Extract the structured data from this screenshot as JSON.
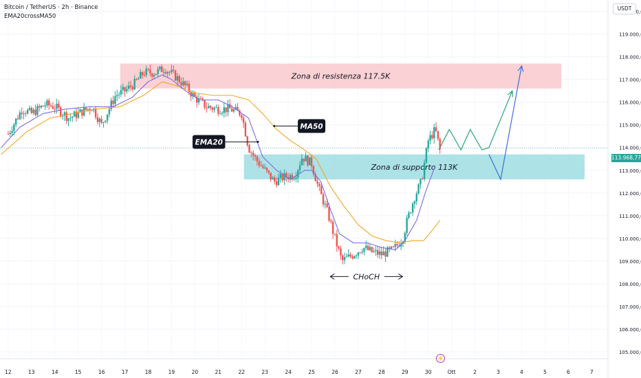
{
  "header": {
    "title": "Bitcoin / TetherUS · 2h · Binance",
    "indicator": "EMA20crossMA50"
  },
  "price_axis": {
    "currency": "USDT",
    "current_price_label": "113.968,77"
  },
  "icons": {
    "event": "lightning-icon"
  },
  "colors": {
    "up": "#26a69a",
    "down": "#ef5350",
    "ema20": "#7b6be0",
    "ma50": "#f5a623",
    "resistance_zone": "#f9c9cd",
    "support_zone": "#9fdde3",
    "projection_green": "#2aa876",
    "projection_blue": "#3a6fd8"
  },
  "chart_data": {
    "type": "candlestick",
    "y_tick_labels": [
      "105.000,00",
      "106.000,00",
      "107.000,00",
      "108.000,00",
      "109.000,00",
      "110.000,00",
      "111.000,00",
      "112.000,00",
      "113.000,00",
      "114.000,00",
      "115.000,00",
      "116.000,00",
      "117.000,00",
      "118.000,00",
      "119.000,00",
      "120.000,00"
    ],
    "y_tick_values": [
      105000,
      106000,
      107000,
      108000,
      109000,
      110000,
      111000,
      112000,
      113000,
      114000,
      115000,
      116000,
      117000,
      118000,
      119000,
      120000
    ],
    "ylim": [
      104700,
      120500
    ],
    "x_tick_labels": [
      "12",
      "13",
      "14",
      "15",
      "16",
      "17",
      "18",
      "19",
      "20",
      "21",
      "22",
      "23",
      "24",
      "25",
      "26",
      "27",
      "28",
      "29",
      "30",
      "Ott",
      "2",
      "3",
      "4",
      "5",
      "6",
      "7"
    ],
    "x_tick_days": [
      0,
      1,
      2,
      3,
      4,
      5,
      6,
      7,
      8,
      9,
      10,
      11,
      12,
      13,
      14,
      15,
      16,
      17,
      18,
      19,
      20,
      21,
      22,
      23,
      24,
      25
    ],
    "xlim_days": [
      -0.35,
      25.7
    ],
    "close_path_days": [
      0,
      0.6,
      1,
      1.6,
      2,
      2.6,
      3,
      3.6,
      4,
      4.6,
      5,
      5.4,
      5.8,
      6.3,
      6.7,
      7.2,
      7.6,
      8,
      8.5,
      9,
      9.5,
      10,
      10.3,
      10.6,
      11,
      11.4,
      11.8,
      12.3,
      12.6,
      13,
      13.3,
      13.7,
      14,
      14.3,
      14.8,
      15.2,
      15.6,
      16,
      16.5,
      16.9,
      17.1,
      17.4,
      17.7,
      18,
      18.3,
      18.5
    ],
    "close_path_values": [
      114600,
      115700,
      115500,
      115900,
      115800,
      115300,
      115500,
      115800,
      115000,
      116300,
      116500,
      116800,
      117300,
      117300,
      117500,
      117100,
      116700,
      116200,
      115800,
      115700,
      115700,
      115500,
      114000,
      113500,
      113000,
      112500,
      112700,
      112800,
      113600,
      113300,
      112200,
      111100,
      110000,
      109000,
      109300,
      109600,
      109400,
      109300,
      109500,
      110000,
      110800,
      111800,
      112500,
      114300,
      114800,
      113900
    ],
    "ema20": {
      "x": [
        -0.3,
        0.5,
        1.5,
        2.5,
        3.5,
        4.5,
        5.3,
        6,
        6.6,
        7,
        7.6,
        8.2,
        9,
        9.6,
        10.3,
        10.9,
        11.5,
        12.1,
        12.7,
        13,
        13.4,
        13.8,
        14.2,
        14.8,
        15.4,
        16,
        16.6,
        17,
        17.5,
        17.9,
        18.3
      ],
      "y": [
        114000,
        114900,
        115500,
        115700,
        115800,
        115800,
        116200,
        116900,
        117200,
        117000,
        116500,
        116100,
        116100,
        115800,
        115300,
        113600,
        113000,
        112600,
        113000,
        113000,
        112500,
        111300,
        110200,
        109800,
        109800,
        109600,
        109500,
        109900,
        110800,
        112100,
        113200
      ]
    },
    "ma50": {
      "x": [
        -0.3,
        0.8,
        1.8,
        2.8,
        3.8,
        4.8,
        5.8,
        6.6,
        7.3,
        8,
        8.8,
        9.6,
        10.3,
        10.9,
        11.5,
        12.1,
        12.7,
        13.2,
        13.8,
        14.4,
        15,
        15.6,
        16.2,
        16.8,
        17.3,
        17.8,
        18.2,
        18.5
      ],
      "y": [
        113700,
        114700,
        115300,
        115500,
        115700,
        115800,
        116300,
        116900,
        116700,
        116400,
        116300,
        116300,
        116100,
        115500,
        114800,
        114300,
        113900,
        113500,
        112300,
        111400,
        110600,
        110100,
        109900,
        109800,
        109900,
        109900,
        110400,
        110800
      ]
    },
    "resistance_zone": {
      "label": "Zona di resistenza 117.5K",
      "from": 116600,
      "to": 117700,
      "x_start_day": 4.8,
      "x_end_day": 23.7
    },
    "support_zone": {
      "label": "Zona di supporto 113K",
      "from": 112600,
      "to": 113700,
      "x_start_day": 10.1,
      "x_end_day": 24.7
    },
    "projection_green": {
      "x": [
        18.45,
        18.9,
        19.4,
        19.8,
        20.3,
        20.6,
        21.6
      ],
      "y": [
        113900,
        114800,
        113900,
        114800,
        113900,
        114000,
        116500
      ]
    },
    "projection_blue": {
      "x": [
        20.6,
        21.1,
        22.0
      ],
      "y": [
        113700,
        112600,
        117600
      ]
    },
    "current_price": 113968.77,
    "annotations": [
      {
        "text": "MA50",
        "box_day": 13.0,
        "box_price": 114950,
        "arrow_to_day": 11.4,
        "arrow_to_price": 114950
      },
      {
        "text": "EMA20",
        "box_day": 8.6,
        "box_price": 114250,
        "arrow_to_day": 10.7,
        "arrow_to_price": 114250
      },
      {
        "text": "CHoCH",
        "left_day": 13.8,
        "right_day": 16.9,
        "price": 108320
      }
    ]
  }
}
